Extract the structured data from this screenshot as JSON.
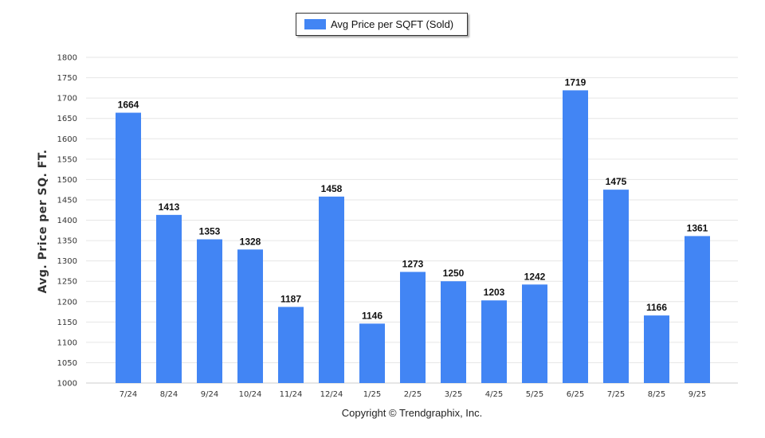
{
  "chart_data": {
    "type": "bar",
    "legend": "Avg Price per SQFT (Sold)",
    "legend_position": "top-center",
    "ylabel": "Avg. Price per SQ. FT.",
    "xlabel": "",
    "ylim": [
      1000,
      1800
    ],
    "yticks": [
      1000,
      1050,
      1100,
      1150,
      1200,
      1250,
      1300,
      1350,
      1400,
      1450,
      1500,
      1550,
      1600,
      1650,
      1700,
      1750,
      1800
    ],
    "grid": true,
    "bar_color": "#4285f4",
    "categories": [
      "7/24",
      "8/24",
      "9/24",
      "10/24",
      "11/24",
      "12/24",
      "1/25",
      "2/25",
      "3/25",
      "4/25",
      "5/25",
      "6/25",
      "7/25",
      "8/25",
      "9/25"
    ],
    "series": [
      {
        "name": "Avg Price per SQFT (Sold)",
        "values": [
          1664,
          1413,
          1353,
          1328,
          1187,
          1458,
          1146,
          1273,
          1250,
          1203,
          1242,
          1719,
          1475,
          1166,
          1361
        ]
      }
    ]
  },
  "footer": {
    "copyright": "Copyright © Trendgraphix, Inc."
  }
}
